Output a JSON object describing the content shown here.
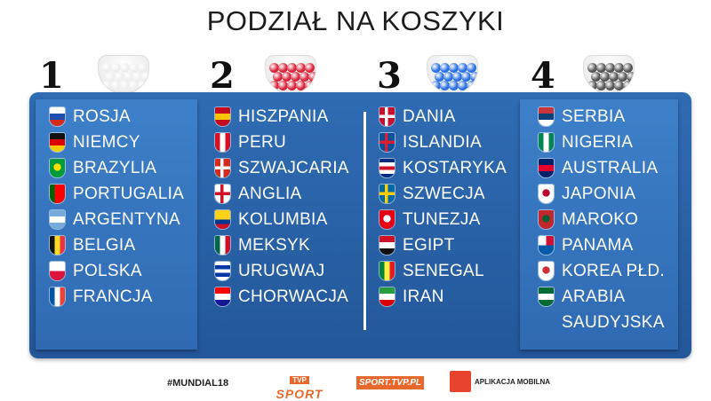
{
  "title": "PODZIAŁ NA KOSZYKI",
  "pots": [
    {
      "number": "1",
      "ball_color": "#eeeeee",
      "countries": [
        {
          "name": "ROSJA",
          "flag": [
            "#ffffff",
            "#1c4fb0",
            "#d52b1e"
          ],
          "dir": "h"
        },
        {
          "name": "NIEMCY",
          "flag": [
            "#111111",
            "#dd0000",
            "#ffce00"
          ],
          "dir": "h"
        },
        {
          "name": "BRAZYLIA",
          "flag": [
            "#009c3b",
            "#ffdf00",
            "#002776"
          ],
          "dir": "c"
        },
        {
          "name": "PORTUGALIA",
          "flag": [
            "#006600",
            "#ff0000",
            "#ff0000"
          ],
          "dir": "v"
        },
        {
          "name": "ARGENTYNA",
          "flag": [
            "#75aadb",
            "#ffffff",
            "#75aadb"
          ],
          "dir": "h"
        },
        {
          "name": "BELGIA",
          "flag": [
            "#111111",
            "#fdda24",
            "#ef3340"
          ],
          "dir": "v"
        },
        {
          "name": "POLSKA",
          "flag": [
            "#ffffff",
            "#dc143c"
          ],
          "dir": "h"
        },
        {
          "name": "FRANCJA",
          "flag": [
            "#0055a4",
            "#ffffff",
            "#ef4135"
          ],
          "dir": "v"
        }
      ]
    },
    {
      "number": "2",
      "ball_color": "#d8243a",
      "countries": [
        {
          "name": "HISZPANIA",
          "flag": [
            "#c60b1e",
            "#ffc400",
            "#c60b1e"
          ],
          "dir": "h"
        },
        {
          "name": "PERU",
          "flag": [
            "#d91023",
            "#ffffff",
            "#d91023"
          ],
          "dir": "v"
        },
        {
          "name": "SZWAJCARIA",
          "flag": [
            "#d52b1e",
            "#ffffff",
            "#d52b1e"
          ],
          "dir": "x"
        },
        {
          "name": "ANGLIA",
          "flag": [
            "#ffffff",
            "#ce1124",
            "#ffffff"
          ],
          "dir": "x"
        },
        {
          "name": "KOLUMBIA",
          "flag": [
            "#fcd116",
            "#fcd116",
            "#003893",
            "#ce1126"
          ],
          "dir": "h"
        },
        {
          "name": "MEKSYK",
          "flag": [
            "#006847",
            "#ffffff",
            "#ce1126"
          ],
          "dir": "v"
        },
        {
          "name": "URUGWAJ",
          "flag": [
            "#ffffff",
            "#0038a8",
            "#ffffff",
            "#0038a8",
            "#ffffff"
          ],
          "dir": "h"
        },
        {
          "name": "CHORWACJA",
          "flag": [
            "#ff0000",
            "#ffffff",
            "#171796"
          ],
          "dir": "h"
        }
      ]
    },
    {
      "number": "3",
      "ball_color": "#2a6fe0",
      "countries": [
        {
          "name": "DANIA",
          "flag": [
            "#c8102e",
            "#ffffff",
            "#c8102e"
          ],
          "dir": "x"
        },
        {
          "name": "ISLANDIA",
          "flag": [
            "#02529c",
            "#dc1e35",
            "#02529c"
          ],
          "dir": "x"
        },
        {
          "name": "KOSTARYKA",
          "flag": [
            "#002b7f",
            "#ffffff",
            "#ce1126",
            "#ffffff",
            "#002b7f"
          ],
          "dir": "h"
        },
        {
          "name": "SZWECJA",
          "flag": [
            "#006aa7",
            "#fecc00",
            "#006aa7"
          ],
          "dir": "x"
        },
        {
          "name": "TUNEZJA",
          "flag": [
            "#e70013",
            "#ffffff",
            "#e70013"
          ],
          "dir": "c"
        },
        {
          "name": "EGIPT",
          "flag": [
            "#ce1126",
            "#ffffff",
            "#111111"
          ],
          "dir": "h"
        },
        {
          "name": "SENEGAL",
          "flag": [
            "#00853f",
            "#fdef42",
            "#e31b23"
          ],
          "dir": "v"
        },
        {
          "name": "IRAN",
          "flag": [
            "#239f40",
            "#ffffff",
            "#da0000"
          ],
          "dir": "h"
        }
      ]
    },
    {
      "number": "4",
      "ball_color": "#555555",
      "countries": [
        {
          "name": "SERBIA",
          "flag": [
            "#c6363c",
            "#0c4076",
            "#ffffff"
          ],
          "dir": "h"
        },
        {
          "name": "NIGERIA",
          "flag": [
            "#008751",
            "#ffffff",
            "#008751"
          ],
          "dir": "v"
        },
        {
          "name": "AUSTRALIA",
          "flag": [
            "#012169",
            "#e4002b",
            "#012169"
          ],
          "dir": "h"
        },
        {
          "name": "JAPONIA",
          "flag": [
            "#ffffff",
            "#bc002d",
            "#ffffff"
          ],
          "dir": "c"
        },
        {
          "name": "MAROKO",
          "flag": [
            "#c1272d",
            "#006233",
            "#c1272d"
          ],
          "dir": "c"
        },
        {
          "name": "PANAMA",
          "flag": [
            "#ffffff",
            "#d21034",
            "#005aa7",
            "#ffffff"
          ],
          "dir": "q"
        },
        {
          "name": "KOREA PŁD.",
          "flag": [
            "#ffffff",
            "#cd2e3a",
            "#ffffff"
          ],
          "dir": "c"
        },
        {
          "name": "ARABIA",
          "continuation": "SAUDYJSKA",
          "flag": [
            "#006c35",
            "#ffffff",
            "#006c35"
          ],
          "dir": "h"
        }
      ]
    }
  ],
  "footer": {
    "hashtag": "#MUNDIAL18",
    "tvp_box": "TVP",
    "tvp_sport": "SPORT",
    "site": "SPORT.TVP.PL",
    "app_label": "APLIKACJA MOBILNA"
  }
}
